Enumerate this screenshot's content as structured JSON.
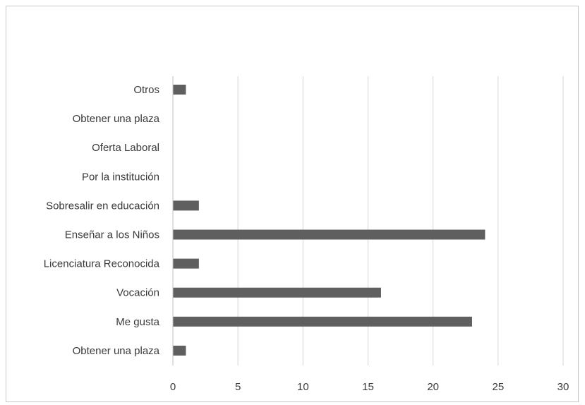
{
  "chart_data": {
    "type": "bar",
    "orientation": "horizontal",
    "title": "",
    "xlabel": "",
    "ylabel": "",
    "xlim": [
      0,
      30
    ],
    "x_ticks": [
      0,
      5,
      10,
      15,
      20,
      25,
      30
    ],
    "grid": true,
    "legend": "none",
    "categories": [
      "Otros",
      "Obtener una plaza",
      "Oferta Laboral",
      "Por la institución",
      "Sobresalir en educación",
      "Enseñar a los Niños",
      "Licenciatura Reconocida",
      "Vocación",
      "Me gusta",
      "Obtener una plaza"
    ],
    "values": [
      1,
      0,
      0,
      0,
      2,
      24,
      2,
      16,
      23,
      1
    ],
    "colors": {
      "bar": "#5f5f5f",
      "grid": "#d6d6d6",
      "axis": "#bfbfbf"
    }
  }
}
